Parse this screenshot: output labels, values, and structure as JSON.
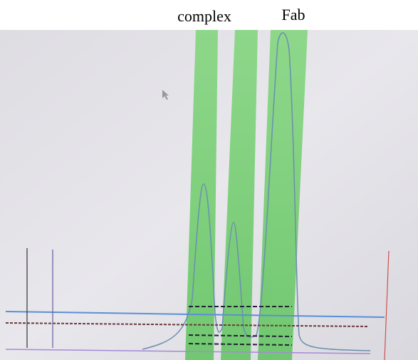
{
  "labels": {
    "left_peak": "complex",
    "right_peak": "Fab"
  }
}
